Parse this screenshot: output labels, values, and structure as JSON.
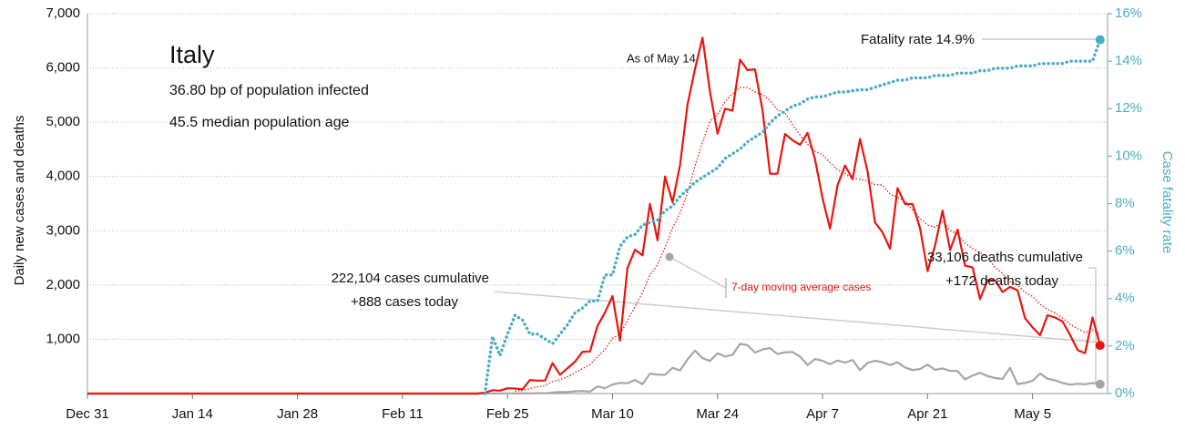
{
  "chart_data": {
    "type": "line",
    "ylabel": "Daily new cases and deaths",
    "y2label": "Case fatality rate",
    "annotations": [
      "Italy",
      "36.80 bp of population infected",
      "45.5 median population age",
      "As of May 14",
      "Fatality rate 14.9%",
      "222,104 cases cumulative",
      "+888 cases today",
      "33,106 deaths cumulative",
      "+172 deaths today"
    ],
    "x": [
      0,
      51,
      52,
      53,
      54,
      55,
      56,
      57,
      58,
      59,
      60,
      61,
      62,
      63,
      64,
      65,
      66,
      67,
      68,
      69,
      70,
      71,
      72,
      73,
      74,
      75,
      76,
      77,
      78,
      79,
      80,
      81,
      82,
      83,
      84,
      85,
      86,
      87,
      88,
      89,
      90,
      91,
      92,
      93,
      94,
      95,
      96,
      97,
      98,
      99,
      100,
      101,
      102,
      103,
      104,
      105,
      106,
      107,
      108,
      109,
      110,
      111,
      112,
      113,
      114,
      115,
      116,
      117,
      118,
      119,
      120,
      121,
      122,
      123,
      124,
      125,
      126,
      127,
      128,
      129,
      130,
      131,
      132,
      133,
      134,
      135
    ],
    "xlim": [
      0,
      136
    ],
    "xticks": [
      {
        "value": 0,
        "label": "Dec 31"
      },
      {
        "value": 14,
        "label": "Jan 14"
      },
      {
        "value": 28,
        "label": "Jan 28"
      },
      {
        "value": 42,
        "label": "Feb 11"
      },
      {
        "value": 56,
        "label": "Feb 25"
      },
      {
        "value": 70,
        "label": "Mar 10"
      },
      {
        "value": 84,
        "label": "Mar 24"
      },
      {
        "value": 98,
        "label": "Apr 7"
      },
      {
        "value": 112,
        "label": "Apr 21"
      },
      {
        "value": 126,
        "label": "May 5"
      }
    ],
    "ylim": [
      0,
      7000
    ],
    "yticks": [
      {
        "value": 1000,
        "label": "1,000"
      },
      {
        "value": 2000,
        "label": "2,000"
      },
      {
        "value": 3000,
        "label": "3,000"
      },
      {
        "value": 4000,
        "label": "4,000"
      },
      {
        "value": 5000,
        "label": "5,000"
      },
      {
        "value": 6000,
        "label": "6,000"
      },
      {
        "value": 7000,
        "label": "7,000"
      }
    ],
    "y2lim": [
      0,
      16
    ],
    "y2ticks": [
      {
        "value": 0,
        "label": "0%"
      },
      {
        "value": 2,
        "label": "2%"
      },
      {
        "value": 4,
        "label": "4%"
      },
      {
        "value": 6,
        "label": "6%"
      },
      {
        "value": 8,
        "label": "8%"
      },
      {
        "value": 10,
        "label": "10%"
      },
      {
        "value": 12,
        "label": "12%"
      },
      {
        "value": 14,
        "label": "14%"
      },
      {
        "value": 16,
        "label": "16%"
      }
    ],
    "grid": true,
    "series": [
      {
        "color": "#a6a6a6",
        "style": "solid",
        "values": [
          0,
          0,
          0,
          1,
          2,
          4,
          3,
          2,
          5,
          4,
          8,
          5,
          18,
          27,
          28,
          41,
          49,
          36,
          133,
          97,
          168,
          196,
          189,
          250,
          175,
          368,
          349,
          345,
          475,
          427,
          627,
          793,
          651,
          601,
          743,
          683,
          712,
          919,
          889,
          756,
          812,
          837,
          727,
          760,
          766,
          681,
          525,
          636,
          604,
          542,
          610,
          570,
          619,
          431,
          566,
          602,
          578,
          525,
          575,
          482,
          433,
          454,
          534,
          437,
          464,
          420,
          415,
          260,
          333,
          382,
          323,
          285,
          269,
          474,
          174,
          195,
          236,
          369,
          274,
          243,
          194,
          165,
          179,
          172,
          195,
          172
        ]
      },
      {
        "name": "7-day moving average cases",
        "color": "#e8160c",
        "style": "dotted",
        "values": [
          null,
          null,
          null,
          null,
          null,
          null,
          null,
          46,
          57,
          93,
          124,
          150,
          222,
          258,
          311,
          384,
          458,
          535,
          679,
          812,
          1019,
          1092,
          1339,
          1608,
          1861,
          2182,
          2372,
          2687,
          3051,
          3322,
          3703,
          4194,
          4632,
          5023,
          5135,
          5381,
          5525,
          5643,
          5640,
          5556,
          5507,
          5402,
          5231,
          5170,
          4958,
          4761,
          4594,
          4466,
          4401,
          4256,
          4121,
          4055,
          3964,
          3948,
          3916,
          3853,
          3843,
          3676,
          3616,
          3551,
          3379,
          3230,
          3102,
          3067,
          3167,
          3005,
          2937,
          2775,
          2672,
          2598,
          2507,
          2323,
          2213,
          2062,
          1997,
          1863,
          1789,
          1644,
          1552,
          1485,
          1394,
          1277,
          1193,
          1125,
          1172,
          1092
        ]
      },
      {
        "color": "#e8160c",
        "style": "solid",
        "values": [
          0,
          0,
          0,
          17,
          62,
          53,
          97,
          93,
          78,
          250,
          238,
          240,
          561,
          347,
          466,
          587,
          769,
          778,
          1247,
          1492,
          1797,
          977,
          2313,
          2651,
          2547,
          3497,
          2823,
          4000,
          3526,
          4207,
          5322,
          5986,
          6557,
          5560,
          4789,
          5249,
          5210,
          6153,
          5959,
          5974,
          5217,
          4050,
          4053,
          4782,
          4668,
          4585,
          4805,
          4316,
          3599,
          3039,
          3836,
          4204,
          3951,
          4694,
          4092,
          3153,
          2972,
          2667,
          3786,
          3493,
          3491,
          3047,
          2256,
          2729,
          3370,
          2646,
          3021,
          2357,
          2324,
          1739,
          2091,
          2086,
          1872,
          1965,
          1900,
          1389,
          1221,
          1075,
          1444,
          1401,
          1327,
          1083,
          802,
          744,
          1402,
          888
        ]
      },
      {
        "color": "#4bacc6",
        "style": "dotted-bold",
        "axis": "y2",
        "values": [
          null,
          null,
          null,
          0,
          2.4,
          1.6,
          2.5,
          3.3,
          3.1,
          2.5,
          2.5,
          2.3,
          2.1,
          2.5,
          2.9,
          3.4,
          3.6,
          3.9,
          3.9,
          5.0,
          5.0,
          6.2,
          6.6,
          6.7,
          7.1,
          7.2,
          7.3,
          7.7,
          7.9,
          8.3,
          8.6,
          8.9,
          9.1,
          9.3,
          9.5,
          9.9,
          10.1,
          10.3,
          10.6,
          10.8,
          11.0,
          11.4,
          11.7,
          11.9,
          12.1,
          12.2,
          12.4,
          12.5,
          12.5,
          12.6,
          12.7,
          12.7,
          12.75,
          12.8,
          12.8,
          12.9,
          13.0,
          13.1,
          13.2,
          13.2,
          13.3,
          13.3,
          13.3,
          13.4,
          13.4,
          13.4,
          13.5,
          13.5,
          13.5,
          13.6,
          13.6,
          13.7,
          13.7,
          13.7,
          13.8,
          13.8,
          13.8,
          13.9,
          13.9,
          13.9,
          13.9,
          14.0,
          14.0,
          14.0,
          14.0,
          14.9
        ]
      }
    ]
  }
}
